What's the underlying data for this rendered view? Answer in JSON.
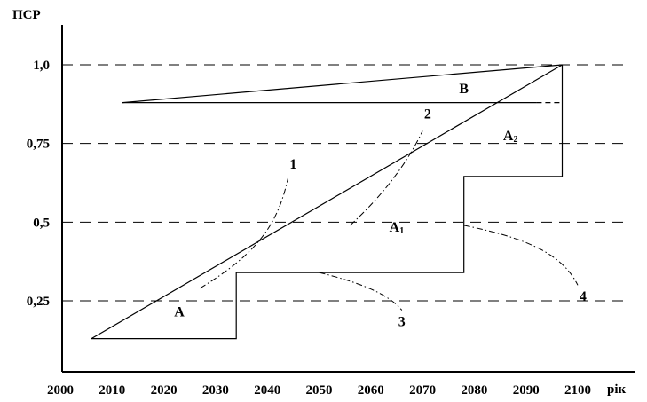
{
  "chart_data": {
    "type": "line",
    "title": "",
    "ylabel": "ПСР",
    "xlabel": "рік",
    "xlim": [
      2000,
      2110
    ],
    "ylim": [
      0.05,
      1.08
    ],
    "x_ticks": [
      2000,
      2010,
      2020,
      2030,
      2040,
      2050,
      2060,
      2070,
      2080,
      2090,
      2100
    ],
    "y_ticks": [
      {
        "value": 0.25,
        "label": "0,25"
      },
      {
        "value": 0.5,
        "label": "0,5"
      },
      {
        "value": 0.75,
        "label": "0,75"
      },
      {
        "value": 1.0,
        "label": "1,0"
      }
    ],
    "grid": "horizontal-dashed",
    "series": [
      {
        "style": "solid",
        "points": [
          [
            2006,
            0.13
          ],
          [
            2097,
            1.0
          ]
        ]
      },
      {
        "style": "solid",
        "points": [
          [
            2012,
            0.88
          ],
          [
            2097,
            1.0
          ]
        ]
      },
      {
        "style": "solid",
        "points": [
          [
            2012,
            0.88
          ],
          [
            2092,
            0.88
          ]
        ]
      },
      {
        "style": "dashed",
        "points": [
          [
            2092,
            0.88
          ],
          [
            2097,
            0.88
          ]
        ]
      },
      {
        "style": "solid",
        "points": [
          [
            2006,
            0.13
          ],
          [
            2034,
            0.13
          ],
          [
            2034,
            0.34
          ],
          [
            2078,
            0.34
          ],
          [
            2078,
            0.645
          ],
          [
            2097,
            0.645
          ],
          [
            2097,
            1.0
          ]
        ]
      }
    ],
    "regions": [
      {
        "label": "A",
        "sub": "",
        "x": 2023,
        "y": 0.2
      },
      {
        "label": "A",
        "sub": "1",
        "x": 2065,
        "y": 0.47
      },
      {
        "label": "A",
        "sub": "2",
        "x": 2087,
        "y": 0.76
      },
      {
        "label": "B",
        "sub": "",
        "x": 2078,
        "y": 0.91
      }
    ],
    "annotations": [
      {
        "label": "1",
        "text_at": [
          2045,
          0.67
        ],
        "path": [
          [
            2027,
            0.29
          ],
          [
            2038,
            0.4
          ],
          [
            2042,
            0.49
          ],
          [
            2044,
            0.64
          ]
        ]
      },
      {
        "label": "2",
        "text_at": [
          2071,
          0.83
        ],
        "path": [
          [
            2056,
            0.49
          ],
          [
            2064,
            0.61
          ],
          [
            2068,
            0.72
          ],
          [
            2070,
            0.79
          ]
        ]
      },
      {
        "label": "3",
        "text_at": [
          2066,
          0.17
        ],
        "path": [
          [
            2050,
            0.34
          ],
          [
            2060,
            0.3
          ],
          [
            2064,
            0.26
          ],
          [
            2066,
            0.22
          ]
        ]
      },
      {
        "label": "4",
        "text_at": [
          2101,
          0.25
        ],
        "path": [
          [
            2078,
            0.49
          ],
          [
            2090,
            0.45
          ],
          [
            2097,
            0.4
          ],
          [
            2100,
            0.3
          ]
        ]
      }
    ]
  }
}
